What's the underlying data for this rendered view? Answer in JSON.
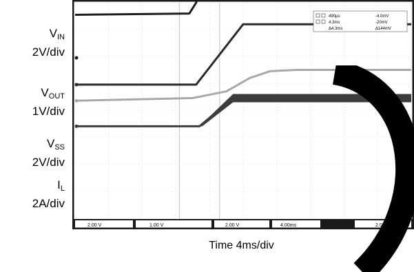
{
  "channel_labels": [
    {
      "main": "V",
      "sub": "IN",
      "scale": "2V/div"
    },
    {
      "main": "V",
      "sub": "OUT",
      "scale": "1V/div"
    },
    {
      "main": "V",
      "sub": "SS",
      "scale": "2V/div"
    },
    {
      "main": "I",
      "sub": "L",
      "scale": "2A/div"
    }
  ],
  "xlabel": "Time  4ms/div",
  "readout": {
    "line1_a": "490µs",
    "line1_b": "-4.0mV",
    "line2_a": "4.3ms",
    "line2_b": "-20mV",
    "line3_a": "Δ4.3ms",
    "line3_b": "Δ144mV"
  },
  "status_bar": {
    "ch1": "2.00 V",
    "ch2": "1.00 V",
    "ch3": "2.00 V",
    "time": "4.00ms",
    "trig": "2.00V"
  },
  "colors": {
    "screen_bg": "#ffffff",
    "frame": "#1a1a1a",
    "grid": "#c8c8c8",
    "vin": "#1e1e1e",
    "vout": "#2a2a2a",
    "vss": "#a8a8a8",
    "il": "#3c3c3c",
    "watermark": "#000000"
  },
  "chart_data": {
    "type": "line",
    "title": "",
    "xlabel": "Time  4ms/div",
    "ylabel": "",
    "x_divisions": 10,
    "y_divisions": 8,
    "cursor_x_divisions": [
      3.1,
      4.3
    ],
    "series": [
      {
        "name": "VIN",
        "scale": "2V/div",
        "x": [
          0,
          3.4,
          3.6,
          3.8,
          4.1,
          4.5,
          6.0,
          8.0,
          8.4,
          10
        ],
        "y": [
          3.2,
          3.3,
          4.1,
          5.6,
          6.8,
          7.1,
          7.2,
          7.4,
          7.5,
          7.55
        ]
      },
      {
        "name": "VOUT",
        "scale": "1V/div",
        "x": [
          0,
          3.6,
          5.0,
          10
        ],
        "y": [
          0,
          0,
          4.5,
          4.5
        ]
      },
      {
        "name": "VSS",
        "scale": "2V/div",
        "x": [
          0,
          3.5,
          4.5,
          5.2,
          5.8,
          6.6,
          10
        ],
        "y": [
          0,
          0.2,
          0.7,
          1.7,
          2.2,
          2.3,
          2.3
        ]
      },
      {
        "name": "IL",
        "scale": "2A/div",
        "x": [
          0,
          3.7,
          4.7,
          10
        ],
        "y": [
          0,
          0,
          2.1,
          2.1
        ]
      }
    ]
  }
}
